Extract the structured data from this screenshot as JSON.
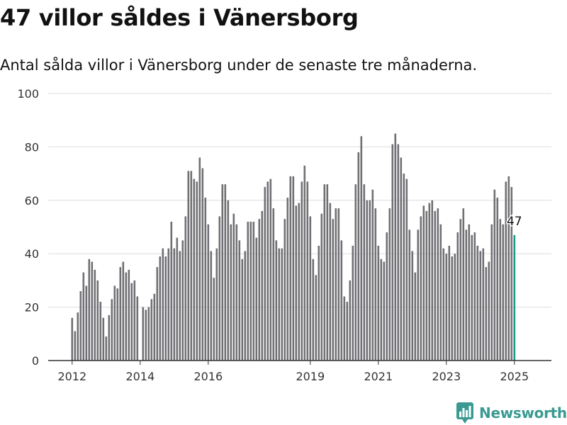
{
  "header": {
    "title": "47 villor såldes i Vänersborg",
    "subtitle": "Antal sålda villor i Vänersborg under de senaste tre månaderna."
  },
  "brand": {
    "name": "Newsworthy",
    "icon": "bar-chart-logo-icon",
    "color": "#3a9a92"
  },
  "colors": {
    "bar": "#707074",
    "highlight": "#1a9a8a",
    "grid": "#dddddd",
    "axis": "#333333"
  },
  "chart_data": {
    "type": "bar",
    "ylim": [
      0,
      100
    ],
    "yticks": [
      0,
      20,
      40,
      60,
      80,
      100
    ],
    "xticks": [
      "2012",
      "2014",
      "2016",
      "2019",
      "2021",
      "2023",
      "2025"
    ],
    "grid": true,
    "highlight_label": "47",
    "series": [
      {
        "values": [
          16,
          11,
          18,
          26,
          33,
          28,
          38,
          37,
          34,
          30,
          22,
          16,
          9,
          17,
          23,
          28,
          27,
          35,
          37,
          33,
          34,
          29,
          30,
          24,
          0,
          20,
          19,
          20,
          23,
          25,
          35,
          39,
          42,
          39,
          42,
          52,
          42,
          46,
          41,
          45,
          54,
          71,
          71,
          68,
          67,
          76,
          72,
          61,
          51,
          41,
          31,
          42,
          54,
          66,
          66,
          60,
          51,
          55,
          51,
          45,
          38,
          41,
          52,
          52,
          52,
          46,
          53,
          56,
          65,
          67,
          68,
          57,
          45,
          42,
          42,
          53,
          61,
          69,
          69,
          58,
          59,
          67,
          73,
          67,
          54,
          38,
          32,
          43,
          55,
          66,
          66,
          59,
          53,
          57,
          57,
          45,
          24,
          22,
          30,
          43,
          66,
          78,
          84,
          66,
          60,
          60,
          64,
          57,
          43,
          38,
          37,
          48,
          57,
          81,
          85,
          81,
          76,
          70,
          68,
          49,
          41,
          33,
          49,
          54,
          58,
          56,
          59,
          60,
          56,
          57,
          51,
          42,
          40,
          43,
          39,
          40,
          48,
          53,
          57,
          49,
          51,
          47,
          48,
          43,
          41,
          42,
          35,
          37,
          51,
          64,
          61,
          53,
          51,
          67,
          69,
          65,
          47
        ]
      }
    ]
  }
}
